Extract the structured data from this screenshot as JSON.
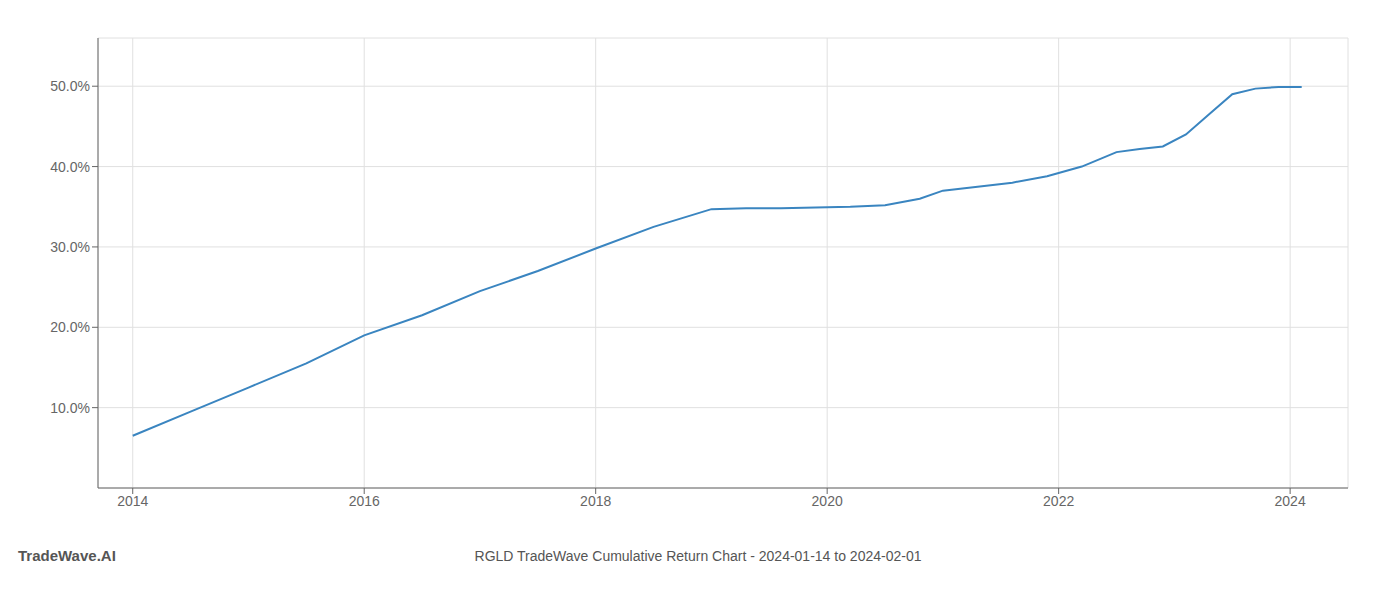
{
  "chart_data": {
    "type": "line",
    "title": "RGLD TradeWave Cumulative Return Chart - 2024-01-14 to 2024-02-01",
    "annotations": [
      "TradeWave.AI"
    ],
    "x": [
      2014.0,
      2014.5,
      2015.0,
      2015.5,
      2016.0,
      2016.5,
      2017.0,
      2017.5,
      2018.0,
      2018.5,
      2019.0,
      2019.3,
      2019.6,
      2019.9,
      2020.2,
      2020.5,
      2020.8,
      2021.0,
      2021.3,
      2021.6,
      2021.9,
      2022.2,
      2022.5,
      2022.7,
      2022.9,
      2023.1,
      2023.3,
      2023.5,
      2023.7,
      2023.9,
      2024.0,
      2024.1
    ],
    "values": [
      6.5,
      9.5,
      12.5,
      15.5,
      19.0,
      21.5,
      24.5,
      27.0,
      29.8,
      32.5,
      34.7,
      34.8,
      34.8,
      34.9,
      35.0,
      35.2,
      36.0,
      37.0,
      37.5,
      38.0,
      38.8,
      40.0,
      41.8,
      42.2,
      42.5,
      44.0,
      46.5,
      49.0,
      49.7,
      49.9,
      49.9,
      49.9
    ],
    "color": "#3a85c0",
    "xlim": [
      2013.7,
      2024.5
    ],
    "ylim": [
      0,
      56
    ],
    "xticks": [
      2014,
      2016,
      2018,
      2020,
      2022,
      2024
    ],
    "yticks": [
      {
        "value": 10.0,
        "label": "10.0%"
      },
      {
        "value": 20.0,
        "label": "20.0%"
      },
      {
        "value": 30.0,
        "label": "30.0%"
      },
      {
        "value": 40.0,
        "label": "40.0%"
      },
      {
        "value": 50.0,
        "label": "50.0%"
      }
    ],
    "grid": true
  }
}
